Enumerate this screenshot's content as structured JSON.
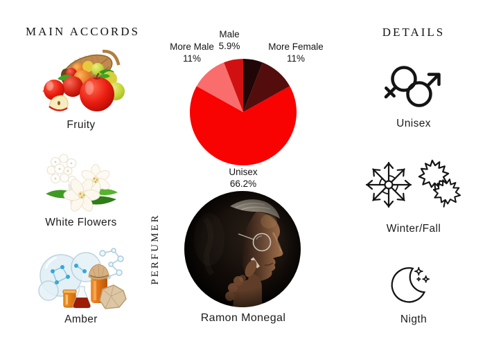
{
  "left_column": {
    "title": "MAIN ACCORDS",
    "accords": [
      {
        "label": "Fruity",
        "image": "fruit-basket-apples"
      },
      {
        "label": "White Flowers",
        "image": "white-jasmine-flowers"
      },
      {
        "label": "Amber",
        "image": "amber-bottles-resin-molecules"
      }
    ]
  },
  "center_column": {
    "perfumer_heading": "PERFUMER",
    "perfumer_name": "Ramon Monegal",
    "photo": "dark-portrait-man-profile-glasses"
  },
  "right_column": {
    "title": "DETAILS",
    "details": [
      {
        "label": "Unisex",
        "icon": "unisex-gender-symbols-icon"
      },
      {
        "label": "Winter/Fall",
        "icon": "snowflake-maple-leaves-icon"
      },
      {
        "label": "Nigth",
        "icon": "crescent-moon-stars-icon"
      }
    ]
  },
  "chart_data": {
    "type": "pie",
    "title": "Gender audience distribution",
    "unit": "%",
    "start_angle_deg": 0,
    "direction": "clockwise",
    "legend_position": "callout-labels",
    "slices": [
      {
        "label": "",
        "pct_label": "",
        "value": 5.9,
        "color": "#200606"
      },
      {
        "label": "More Female",
        "pct_label": "11%",
        "value": 11,
        "color": "#530d0d"
      },
      {
        "label": "Unisex",
        "pct_label": "66.2%",
        "value": 66.2,
        "color": "#f90202"
      },
      {
        "label": "More Male",
        "pct_label": "11%",
        "value": 11,
        "color": "#fa6d6d"
      },
      {
        "label": "Male",
        "pct_label": "5.9%",
        "value": 5.9,
        "color": "#d11111"
      }
    ]
  },
  "colors": {
    "text": "#1b1b1b",
    "background": "#ffffff",
    "icon_stroke": "#141414"
  }
}
